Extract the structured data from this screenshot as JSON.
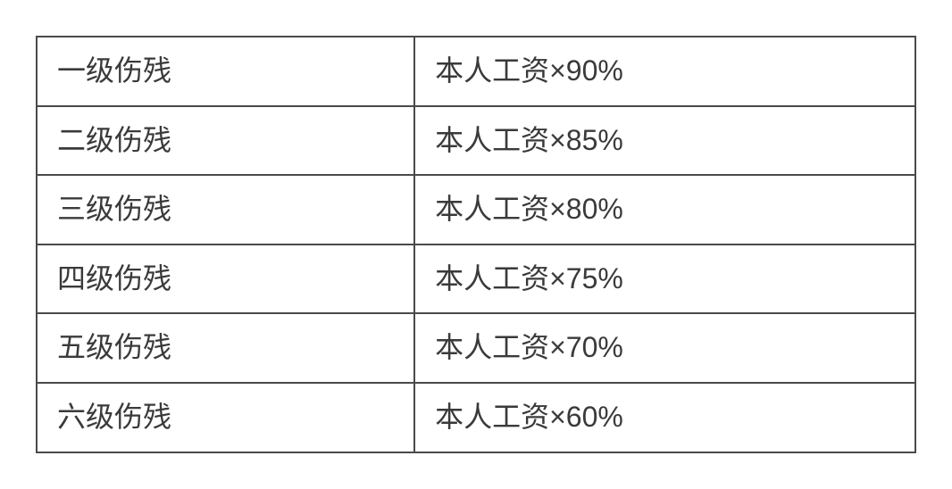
{
  "table": {
    "type": "table",
    "border_color": "#4a4a4a",
    "border_width": 2,
    "background_color": "#ffffff",
    "text_color": "#3a3a3a",
    "font_size": 32,
    "cell_padding_v": 17,
    "cell_padding_h": 22,
    "columns": [
      {
        "key": "level",
        "width_pct": 43,
        "align": "left"
      },
      {
        "key": "formula",
        "width_pct": 57,
        "align": "left"
      }
    ],
    "rows": [
      {
        "level": "一级伤残",
        "formula": "本人工资×90%"
      },
      {
        "level": "二级伤残",
        "formula": "本人工资×85%"
      },
      {
        "level": "三级伤残",
        "formula": "本人工资×80%"
      },
      {
        "level": "四级伤残",
        "formula": "本人工资×75%"
      },
      {
        "level": "五级伤残",
        "formula": "本人工资×70%"
      },
      {
        "level": "六级伤残",
        "formula": "本人工资×60%"
      }
    ]
  }
}
